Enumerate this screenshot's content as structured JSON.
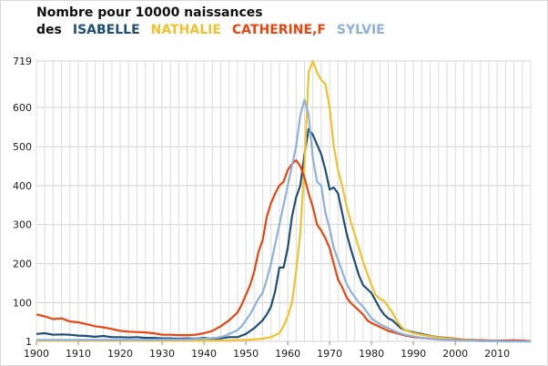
{
  "chart_data": {
    "type": "line",
    "title": "Nombre pour 10000 naissances des",
    "xlabel": "",
    "ylabel": "",
    "xlim": [
      1900,
      2018
    ],
    "ylim": [
      1,
      719
    ],
    "y_ticks": [
      1,
      100,
      200,
      300,
      400,
      500,
      600,
      719
    ],
    "x_ticks": [
      1900,
      1910,
      1920,
      1930,
      1940,
      1950,
      1960,
      1970,
      1980,
      1990,
      2000,
      2010
    ],
    "grid": true,
    "legend": "top",
    "series": [
      {
        "name": "ISABELLE",
        "color": "#1f4e79",
        "points": [
          [
            1900,
            20
          ],
          [
            1902,
            22
          ],
          [
            1904,
            18
          ],
          [
            1906,
            19
          ],
          [
            1908,
            18
          ],
          [
            1910,
            16
          ],
          [
            1912,
            15
          ],
          [
            1914,
            13
          ],
          [
            1916,
            15
          ],
          [
            1918,
            12
          ],
          [
            1920,
            12
          ],
          [
            1922,
            11
          ],
          [
            1924,
            12
          ],
          [
            1926,
            10
          ],
          [
            1928,
            10
          ],
          [
            1930,
            9
          ],
          [
            1932,
            9
          ],
          [
            1934,
            8
          ],
          [
            1936,
            9
          ],
          [
            1938,
            8
          ],
          [
            1940,
            10
          ],
          [
            1942,
            8
          ],
          [
            1944,
            9
          ],
          [
            1946,
            12
          ],
          [
            1948,
            12
          ],
          [
            1950,
            20
          ],
          [
            1952,
            35
          ],
          [
            1954,
            55
          ],
          [
            1955,
            70
          ],
          [
            1956,
            90
          ],
          [
            1957,
            130
          ],
          [
            1958,
            190
          ],
          [
            1959,
            190
          ],
          [
            1960,
            240
          ],
          [
            1961,
            320
          ],
          [
            1962,
            370
          ],
          [
            1963,
            400
          ],
          [
            1964,
            480
          ],
          [
            1965,
            545
          ],
          [
            1966,
            530
          ],
          [
            1967,
            505
          ],
          [
            1968,
            480
          ],
          [
            1969,
            440
          ],
          [
            1970,
            390
          ],
          [
            1971,
            395
          ],
          [
            1972,
            380
          ],
          [
            1973,
            330
          ],
          [
            1974,
            280
          ],
          [
            1975,
            240
          ],
          [
            1976,
            205
          ],
          [
            1977,
            170
          ],
          [
            1978,
            145
          ],
          [
            1979,
            135
          ],
          [
            1980,
            125
          ],
          [
            1981,
            105
          ],
          [
            1982,
            85
          ],
          [
            1983,
            70
          ],
          [
            1984,
            60
          ],
          [
            1985,
            55
          ],
          [
            1986,
            45
          ],
          [
            1987,
            35
          ],
          [
            1988,
            30
          ],
          [
            1990,
            24
          ],
          [
            1992,
            20
          ],
          [
            1994,
            15
          ],
          [
            1996,
            12
          ],
          [
            1998,
            10
          ],
          [
            2000,
            8
          ],
          [
            2002,
            6
          ],
          [
            2004,
            5
          ],
          [
            2006,
            4
          ],
          [
            2008,
            3
          ],
          [
            2010,
            3
          ],
          [
            2012,
            3
          ],
          [
            2014,
            2
          ],
          [
            2016,
            2
          ],
          [
            2018,
            1
          ]
        ]
      },
      {
        "name": "NATHALIE",
        "color": "#f2c12e",
        "points": [
          [
            1900,
            3
          ],
          [
            1910,
            3
          ],
          [
            1920,
            3
          ],
          [
            1930,
            3
          ],
          [
            1940,
            3
          ],
          [
            1945,
            3
          ],
          [
            1950,
            5
          ],
          [
            1952,
            6
          ],
          [
            1954,
            8
          ],
          [
            1956,
            12
          ],
          [
            1958,
            22
          ],
          [
            1959,
            40
          ],
          [
            1960,
            65
          ],
          [
            1961,
            100
          ],
          [
            1962,
            180
          ],
          [
            1963,
            280
          ],
          [
            1964,
            450
          ],
          [
            1965,
            690
          ],
          [
            1966,
            719
          ],
          [
            1967,
            690
          ],
          [
            1968,
            670
          ],
          [
            1969,
            660
          ],
          [
            1970,
            600
          ],
          [
            1971,
            500
          ],
          [
            1972,
            440
          ],
          [
            1973,
            400
          ],
          [
            1974,
            350
          ],
          [
            1975,
            310
          ],
          [
            1976,
            275
          ],
          [
            1977,
            240
          ],
          [
            1978,
            205
          ],
          [
            1979,
            175
          ],
          [
            1980,
            145
          ],
          [
            1981,
            120
          ],
          [
            1982,
            110
          ],
          [
            1983,
            105
          ],
          [
            1984,
            90
          ],
          [
            1985,
            75
          ],
          [
            1986,
            55
          ],
          [
            1987,
            40
          ],
          [
            1988,
            30
          ],
          [
            1990,
            22
          ],
          [
            1992,
            18
          ],
          [
            1994,
            14
          ],
          [
            1996,
            11
          ],
          [
            1998,
            9
          ],
          [
            2000,
            7
          ],
          [
            2002,
            6
          ],
          [
            2004,
            5
          ],
          [
            2006,
            4
          ],
          [
            2008,
            3
          ],
          [
            2010,
            3
          ],
          [
            2012,
            2
          ],
          [
            2014,
            2
          ],
          [
            2016,
            1
          ],
          [
            2018,
            1
          ]
        ]
      },
      {
        "name": "CATHERINE,F",
        "color": "#e8450f",
        "points": [
          [
            1900,
            70
          ],
          [
            1902,
            65
          ],
          [
            1904,
            58
          ],
          [
            1906,
            60
          ],
          [
            1908,
            52
          ],
          [
            1910,
            50
          ],
          [
            1912,
            45
          ],
          [
            1914,
            40
          ],
          [
            1916,
            37
          ],
          [
            1918,
            33
          ],
          [
            1920,
            28
          ],
          [
            1922,
            26
          ],
          [
            1924,
            25
          ],
          [
            1926,
            24
          ],
          [
            1928,
            22
          ],
          [
            1930,
            18
          ],
          [
            1932,
            18
          ],
          [
            1934,
            17
          ],
          [
            1936,
            17
          ],
          [
            1938,
            18
          ],
          [
            1940,
            22
          ],
          [
            1942,
            28
          ],
          [
            1944,
            40
          ],
          [
            1946,
            55
          ],
          [
            1948,
            75
          ],
          [
            1949,
            95
          ],
          [
            1950,
            120
          ],
          [
            1951,
            145
          ],
          [
            1952,
            180
          ],
          [
            1953,
            230
          ],
          [
            1954,
            260
          ],
          [
            1955,
            320
          ],
          [
            1956,
            355
          ],
          [
            1957,
            380
          ],
          [
            1958,
            400
          ],
          [
            1959,
            410
          ],
          [
            1960,
            440
          ],
          [
            1961,
            455
          ],
          [
            1962,
            465
          ],
          [
            1963,
            450
          ],
          [
            1964,
            420
          ],
          [
            1965,
            380
          ],
          [
            1966,
            345
          ],
          [
            1967,
            300
          ],
          [
            1968,
            285
          ],
          [
            1969,
            265
          ],
          [
            1970,
            240
          ],
          [
            1971,
            200
          ],
          [
            1972,
            160
          ],
          [
            1973,
            140
          ],
          [
            1974,
            115
          ],
          [
            1975,
            100
          ],
          [
            1976,
            90
          ],
          [
            1977,
            80
          ],
          [
            1978,
            70
          ],
          [
            1979,
            55
          ],
          [
            1980,
            48
          ],
          [
            1982,
            38
          ],
          [
            1984,
            28
          ],
          [
            1986,
            22
          ],
          [
            1988,
            16
          ],
          [
            1990,
            12
          ],
          [
            1992,
            10
          ],
          [
            1994,
            8
          ],
          [
            1996,
            6
          ],
          [
            1998,
            5
          ],
          [
            2000,
            5
          ],
          [
            2002,
            4
          ],
          [
            2004,
            4
          ],
          [
            2006,
            4
          ],
          [
            2008,
            3
          ],
          [
            2010,
            3
          ],
          [
            2012,
            3
          ],
          [
            2014,
            4
          ],
          [
            2016,
            3
          ],
          [
            2018,
            2
          ]
        ]
      },
      {
        "name": "SYLVIE",
        "color": "#8db0de",
        "points": [
          [
            1900,
            5
          ],
          [
            1905,
            5
          ],
          [
            1910,
            5
          ],
          [
            1915,
            5
          ],
          [
            1920,
            5
          ],
          [
            1925,
            5
          ],
          [
            1930,
            6
          ],
          [
            1935,
            6
          ],
          [
            1940,
            8
          ],
          [
            1943,
            10
          ],
          [
            1945,
            15
          ],
          [
            1946,
            20
          ],
          [
            1947,
            25
          ],
          [
            1948,
            30
          ],
          [
            1949,
            40
          ],
          [
            1950,
            55
          ],
          [
            1951,
            70
          ],
          [
            1952,
            90
          ],
          [
            1953,
            110
          ],
          [
            1954,
            125
          ],
          [
            1955,
            160
          ],
          [
            1956,
            200
          ],
          [
            1957,
            250
          ],
          [
            1958,
            300
          ],
          [
            1959,
            350
          ],
          [
            1960,
            400
          ],
          [
            1961,
            450
          ],
          [
            1962,
            500
          ],
          [
            1963,
            580
          ],
          [
            1964,
            620
          ],
          [
            1965,
            580
          ],
          [
            1966,
            470
          ],
          [
            1967,
            410
          ],
          [
            1968,
            400
          ],
          [
            1969,
            330
          ],
          [
            1970,
            290
          ],
          [
            1971,
            240
          ],
          [
            1972,
            210
          ],
          [
            1973,
            180
          ],
          [
            1974,
            150
          ],
          [
            1975,
            130
          ],
          [
            1976,
            115
          ],
          [
            1977,
            100
          ],
          [
            1978,
            90
          ],
          [
            1979,
            75
          ],
          [
            1980,
            60
          ],
          [
            1982,
            45
          ],
          [
            1984,
            35
          ],
          [
            1986,
            25
          ],
          [
            1988,
            18
          ],
          [
            1990,
            14
          ],
          [
            1992,
            10
          ],
          [
            1994,
            8
          ],
          [
            1996,
            6
          ],
          [
            1998,
            5
          ],
          [
            2000,
            4
          ],
          [
            2002,
            3
          ],
          [
            2004,
            3
          ],
          [
            2006,
            2
          ],
          [
            2008,
            2
          ],
          [
            2010,
            2
          ],
          [
            2012,
            1
          ],
          [
            2014,
            1
          ],
          [
            2016,
            1
          ],
          [
            2018,
            1
          ]
        ]
      }
    ]
  }
}
